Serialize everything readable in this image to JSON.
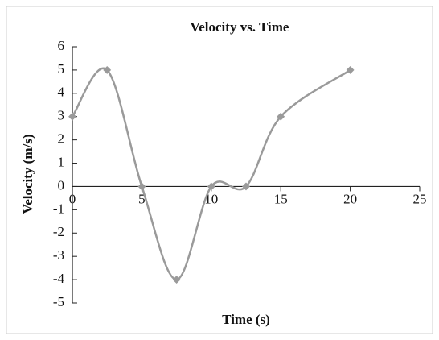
{
  "chart_data": {
    "type": "line",
    "title": "Velocity vs. Time",
    "xlabel": "Time (s)",
    "ylabel": "Velocity (m/s)",
    "x": [
      0,
      2.5,
      5,
      7.5,
      10,
      12.5,
      15,
      20
    ],
    "series": [
      {
        "name": "Velocity",
        "color": "#9a9a9a",
        "values": [
          3,
          5,
          0,
          -4,
          0,
          0,
          3,
          5
        ]
      }
    ],
    "xlim": [
      0,
      25
    ],
    "xticks": [
      0,
      5,
      10,
      15,
      20,
      25
    ],
    "ylim": [
      -5,
      6
    ],
    "yticks": [
      -5,
      -4,
      -3,
      -2,
      -1,
      0,
      1,
      2,
      3,
      4,
      5,
      6
    ],
    "smooth": true,
    "grid": false,
    "legend": false
  }
}
